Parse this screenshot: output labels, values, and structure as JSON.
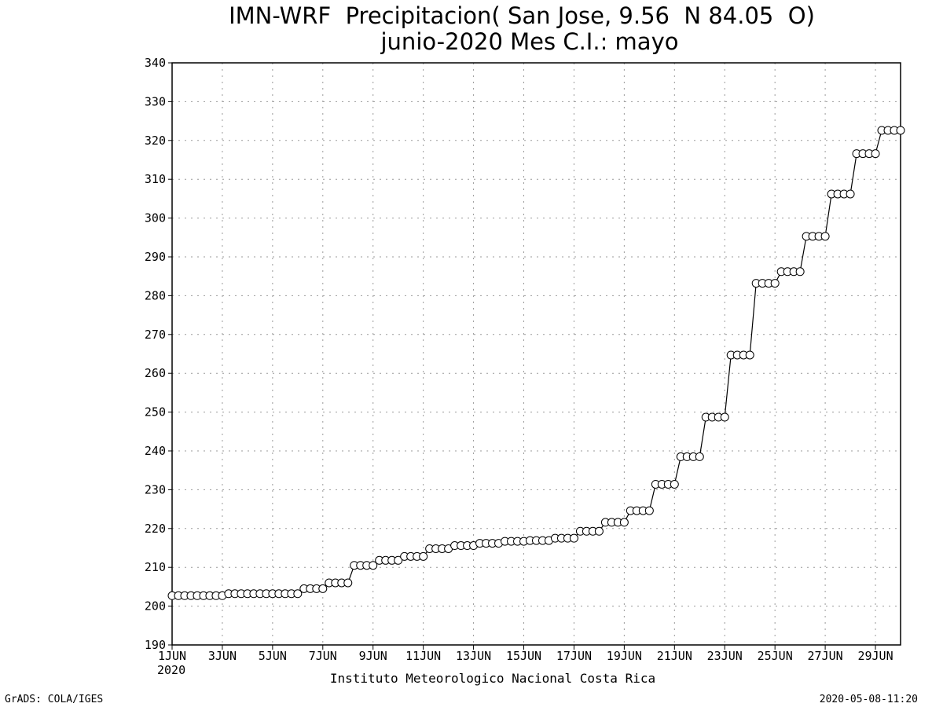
{
  "chart_data": {
    "type": "line",
    "title": "IMN-WRF  Precipitacion( San Jose, 9.56  N 84.05  O)",
    "subtitle": "junio-2020 Mes C.I.: mayo",
    "xlabel": "",
    "ylabel": "",
    "ylim": [
      190,
      340
    ],
    "xlim": [
      1,
      30
    ],
    "y_ticks": [
      "190",
      "200",
      "210",
      "220",
      "230",
      "240",
      "250",
      "260",
      "270",
      "280",
      "290",
      "300",
      "310",
      "320",
      "330",
      "340"
    ],
    "x_ticks": [
      {
        "day": 1,
        "label": "1JUN"
      },
      {
        "day": 3,
        "label": "3JUN"
      },
      {
        "day": 5,
        "label": "5JUN"
      },
      {
        "day": 7,
        "label": "7JUN"
      },
      {
        "day": 9,
        "label": "9JUN"
      },
      {
        "day": 11,
        "label": "11JUN"
      },
      {
        "day": 13,
        "label": "13JUN"
      },
      {
        "day": 15,
        "label": "15JUN"
      },
      {
        "day": 17,
        "label": "17JUN"
      },
      {
        "day": 19,
        "label": "19JUN"
      },
      {
        "day": 21,
        "label": "21JUN"
      },
      {
        "day": 23,
        "label": "23JUN"
      },
      {
        "day": 25,
        "label": "25JUN"
      },
      {
        "day": 27,
        "label": "27JUN"
      },
      {
        "day": 29,
        "label": "29JUN"
      }
    ],
    "x_year_label": "2020",
    "grid": true,
    "marker": "open-circle",
    "x": [
      1.0,
      1.25,
      1.5,
      1.75,
      2.0,
      2.25,
      2.5,
      2.75,
      3.0,
      3.25,
      3.5,
      3.75,
      4.0,
      4.25,
      4.5,
      4.75,
      5.0,
      5.25,
      5.5,
      5.75,
      6.0,
      6.25,
      6.5,
      6.75,
      7.0,
      7.25,
      7.5,
      7.75,
      8.0,
      8.25,
      8.5,
      8.75,
      9.0,
      9.25,
      9.5,
      9.75,
      10.0,
      10.25,
      10.5,
      10.75,
      11.0,
      11.25,
      11.5,
      11.75,
      12.0,
      12.25,
      12.5,
      12.75,
      13.0,
      13.25,
      13.5,
      13.75,
      14.0,
      14.25,
      14.5,
      14.75,
      15.0,
      15.25,
      15.5,
      15.75,
      16.0,
      16.25,
      16.5,
      16.75,
      17.0,
      17.25,
      17.5,
      17.75,
      18.0,
      18.25,
      18.5,
      18.75,
      19.0,
      19.25,
      19.5,
      19.75,
      20.0,
      20.25,
      20.5,
      20.75,
      21.0,
      21.25,
      21.5,
      21.75,
      22.0,
      22.25,
      22.5,
      22.75,
      23.0,
      23.25,
      23.5,
      23.75,
      24.0,
      24.25,
      24.5,
      24.75,
      25.0,
      25.25,
      25.5,
      25.75,
      26.0,
      26.25,
      26.5,
      26.75,
      27.0,
      27.25,
      27.5,
      27.75,
      28.0,
      28.25,
      28.5,
      28.75,
      29.0,
      29.25,
      29.5,
      29.75,
      30.0
    ],
    "series": [
      {
        "values": [
          202.7,
          202.7,
          202.7,
          202.7,
          202.7,
          202.7,
          202.7,
          202.7,
          202.7,
          203.2,
          203.2,
          203.2,
          203.2,
          203.2,
          203.2,
          203.2,
          203.2,
          203.2,
          203.2,
          203.2,
          203.2,
          204.5,
          204.5,
          204.5,
          204.5,
          206.0,
          206.0,
          206.0,
          206.0,
          210.5,
          210.5,
          210.5,
          210.5,
          211.8,
          211.8,
          211.8,
          211.8,
          212.8,
          212.8,
          212.8,
          212.8,
          214.8,
          214.8,
          214.8,
          214.8,
          215.6,
          215.6,
          215.6,
          215.6,
          216.2,
          216.2,
          216.2,
          216.2,
          216.7,
          216.7,
          216.7,
          216.7,
          216.9,
          216.9,
          216.9,
          216.9,
          217.5,
          217.5,
          217.5,
          217.5,
          219.3,
          219.3,
          219.3,
          219.3,
          221.6,
          221.6,
          221.6,
          221.6,
          224.6,
          224.6,
          224.6,
          224.6,
          231.4,
          231.4,
          231.4,
          231.4,
          238.5,
          238.5,
          238.5,
          238.5,
          248.7,
          248.7,
          248.7,
          248.7,
          264.7,
          264.7,
          264.7,
          264.7,
          283.2,
          283.2,
          283.2,
          283.2,
          286.2,
          286.2,
          286.2,
          286.2,
          295.3,
          295.3,
          295.3,
          295.3,
          306.2,
          306.2,
          306.2,
          306.2,
          316.6,
          316.6,
          316.6,
          316.6,
          322.6,
          322.6,
          322.6,
          322.6
        ]
      }
    ]
  },
  "footer": {
    "institution": "Instituto Meteorologico Nacional Costa Rica",
    "credit": "GrADS: COLA/IGES",
    "timestamp": "2020-05-08-11:20"
  }
}
